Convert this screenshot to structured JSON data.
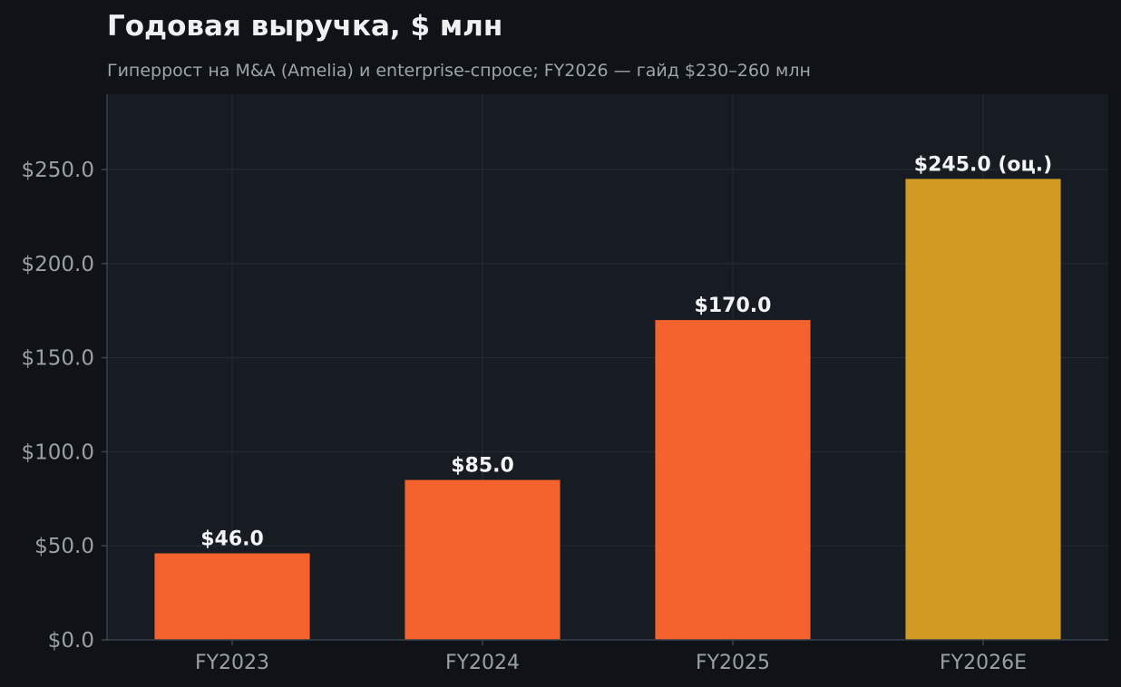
{
  "chart_data": {
    "type": "bar",
    "title": "Годовая выручка, $ млн",
    "subtitle": "Гиперрост на M&A (Amelia) и enterprise-спросе; FY2026 — гайд $230–260 млн",
    "xlabel": "",
    "ylabel": "",
    "categories": [
      "FY2023",
      "FY2024",
      "FY2025",
      "FY2026E"
    ],
    "values": [
      46.0,
      85.0,
      170.0,
      245.0
    ],
    "data_labels": [
      "$46.0",
      "$85.0",
      "$170.0",
      "$245.0 (оц.)"
    ],
    "ylim": [
      0,
      290
    ],
    "yticks": [
      0,
      50,
      100,
      150,
      200,
      250
    ],
    "ytick_labels": [
      "$0.0",
      "$50.0",
      "$100.0",
      "$150.0",
      "$200.0",
      "$250.0"
    ],
    "grid": true,
    "colors": {
      "actual": "#f4632e",
      "estimate": "#d19a23",
      "background": "#0f1317",
      "plot_background": "#171b22"
    },
    "bar_colors": [
      "actual",
      "actual",
      "actual",
      "estimate"
    ]
  }
}
